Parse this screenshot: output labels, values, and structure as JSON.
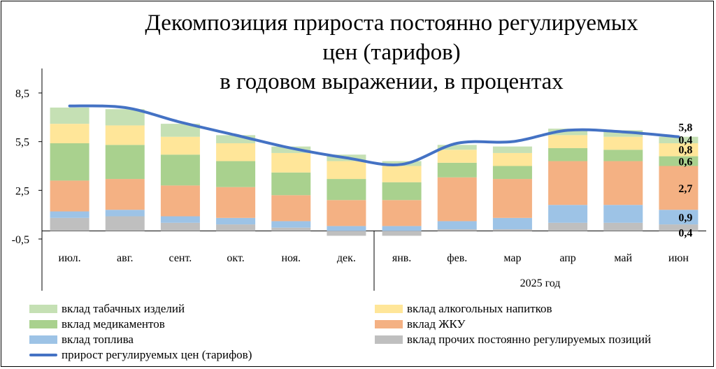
{
  "chart_data": {
    "type": "bar",
    "title_lines": [
      "Декомпозиция прироста постоянно регулируемых",
      "цен (тарифов)",
      "в годовом выражении, в процентах"
    ],
    "categories": [
      "июл.",
      "авг.",
      "сент.",
      "окт.",
      "ноя.",
      "дек.",
      "янв.",
      "фев.",
      "мар",
      "апр",
      "май",
      "июн"
    ],
    "year_label": "2025 год",
    "y_ticks": [
      "8,5",
      "5,5",
      "2,5",
      "-0,5"
    ],
    "ylim": [
      -0.5,
      8.5
    ],
    "stacking_order": [
      "вклад прочих постоянно регулируемых позиций",
      "вклад топлива",
      "вклад ЖКУ",
      "вклад медикаментов",
      "вклад алкогольных напитков",
      "вклад табачных изделий"
    ],
    "series": [
      {
        "name": "вклад прочих постоянно регулируемых позиций",
        "color": "#bfbfbf",
        "values": [
          0.8,
          0.9,
          0.5,
          0.4,
          0.2,
          -0.3,
          -0.3,
          0.1,
          0.1,
          0.5,
          0.5,
          0.4
        ]
      },
      {
        "name": "вклад топлива",
        "color": "#9dc3e6",
        "values": [
          0.4,
          0.4,
          0.4,
          0.4,
          0.4,
          0.3,
          0.3,
          0.5,
          0.7,
          1.1,
          1.1,
          0.9
        ]
      },
      {
        "name": "вклад ЖКУ",
        "color": "#f4b183",
        "values": [
          1.9,
          1.9,
          1.9,
          1.9,
          1.6,
          1.6,
          1.6,
          2.7,
          2.4,
          2.7,
          2.7,
          2.7
        ]
      },
      {
        "name": "вклад медикаментов",
        "color": "#a9d18e",
        "values": [
          2.3,
          2.1,
          1.9,
          1.6,
          1.4,
          1.3,
          1.1,
          0.9,
          0.8,
          0.8,
          0.7,
          0.6
        ]
      },
      {
        "name": "вклад алкогольных напитков",
        "color": "#ffe699",
        "values": [
          1.2,
          1.2,
          1.1,
          1.1,
          1.2,
          1.1,
          1.0,
          0.8,
          0.8,
          0.8,
          0.8,
          0.8
        ]
      },
      {
        "name": "вклад табачных изделий",
        "color": "#c5e0b4",
        "values": [
          1.0,
          1.0,
          0.8,
          0.5,
          0.4,
          0.4,
          0.3,
          0.3,
          0.4,
          0.4,
          0.4,
          0.4
        ]
      }
    ],
    "line": {
      "name": "прирост регулируемых цен (тарифов)",
      "color": "#4472c4",
      "values": [
        7.7,
        7.6,
        6.7,
        5.9,
        5.1,
        4.5,
        4.1,
        5.4,
        5.5,
        6.2,
        6.1,
        5.8
      ]
    },
    "data_labels_last": [
      {
        "series": "прирост регулируемых цен (тарифов)",
        "text": "5,8"
      },
      {
        "series": "вклад табачных изделий",
        "text": "0,4"
      },
      {
        "series": "вклад алкогольных напитков",
        "text": "0,8"
      },
      {
        "series": "вклад медикаментов",
        "text": "0,6"
      },
      {
        "series": "вклад ЖКУ",
        "text": "2,7"
      },
      {
        "series": "вклад топлива",
        "text": "0,9"
      },
      {
        "series": "вклад прочих постоянно регулируемых позиций",
        "text": "0,4"
      }
    ]
  },
  "legend": [
    {
      "label": "вклад табачных изделий",
      "color": "#c5e0b4",
      "kind": "box"
    },
    {
      "label": "вклад алкогольных напитков",
      "color": "#ffe699",
      "kind": "box"
    },
    {
      "label": "вклад медикаментов",
      "color": "#a9d18e",
      "kind": "box"
    },
    {
      "label": "вклад ЖКУ",
      "color": "#f4b183",
      "kind": "box"
    },
    {
      "label": "вклад топлива",
      "color": "#9dc3e6",
      "kind": "box"
    },
    {
      "label": "вклад прочих постоянно регулируемых позиций",
      "color": "#bfbfbf",
      "kind": "box"
    },
    {
      "label": "прирост регулируемых цен (тарифов)",
      "color": "#4472c4",
      "kind": "line"
    }
  ]
}
